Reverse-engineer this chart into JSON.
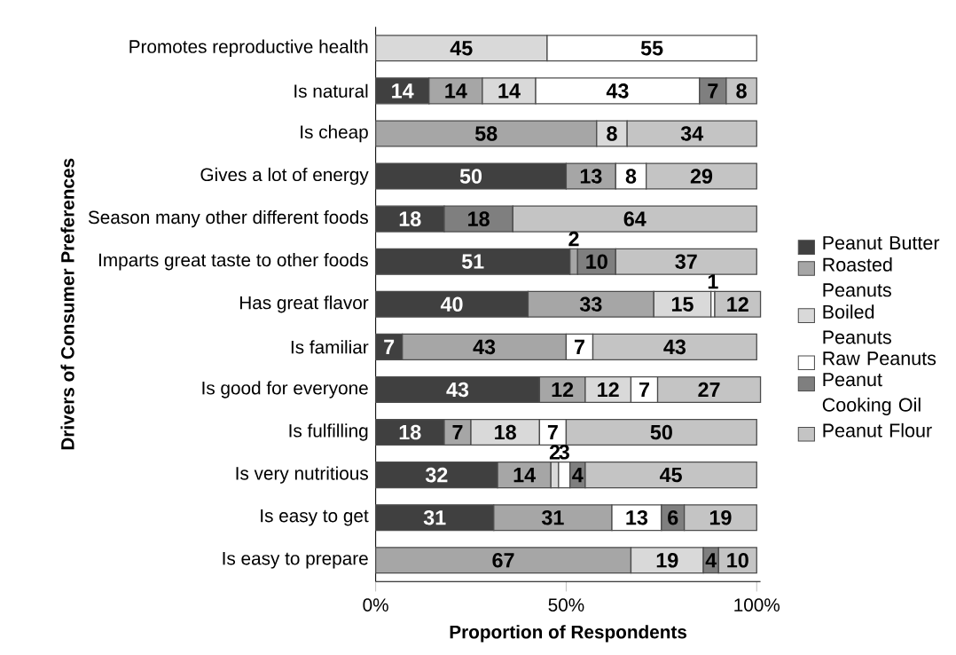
{
  "chart_data": {
    "type": "bar",
    "orientation": "horizontal",
    "stacked": true,
    "xlabel": "Proportion of Respondents",
    "ylabel": "Drivers of Consumer Preferences",
    "categories": [
      "Promotes reproductive health",
      "Is natural",
      "Is cheap",
      "Gives a lot of energy",
      "Season many other different foods",
      "Imparts great taste to other foods",
      "Has great flavor",
      "Is familiar",
      "Is good for everyone",
      "Is fulfilling",
      "Is very nutritious",
      "Is easy to get",
      "Is easy to prepare"
    ],
    "series": [
      {
        "name": "Peanut Butter",
        "color": "#404040",
        "values": [
          null,
          14,
          null,
          50,
          18,
          51,
          40,
          7,
          43,
          18,
          32,
          31,
          null
        ]
      },
      {
        "name": "Roasted Peanuts",
        "color": "#a6a6a6",
        "values": [
          null,
          14,
          58,
          13,
          null,
          2,
          33,
          43,
          12,
          7,
          14,
          31,
          67
        ]
      },
      {
        "name": "Boiled Peanuts",
        "color": "#d9d9d9",
        "values": [
          45,
          14,
          8,
          null,
          null,
          null,
          15,
          null,
          12,
          18,
          2,
          null,
          19
        ]
      },
      {
        "name": "Raw Peanuts",
        "color": "#ffffff",
        "values": [
          55,
          43,
          null,
          8,
          null,
          null,
          1,
          7,
          7,
          7,
          3,
          13,
          null
        ]
      },
      {
        "name": "Peanut Cooking Oil",
        "color": "#7f7f7f",
        "values": [
          null,
          7,
          null,
          null,
          18,
          10,
          null,
          null,
          null,
          null,
          4,
          6,
          4
        ]
      },
      {
        "name": "Peanut Flour",
        "color": "#c4c4c4",
        "values": [
          null,
          8,
          34,
          29,
          64,
          37,
          12,
          43,
          27,
          50,
          45,
          19,
          10
        ]
      }
    ],
    "xlim": [
      0,
      101
    ],
    "xticks": [
      {
        "value": 0,
        "label": "0%"
      },
      {
        "value": 50,
        "label": "50%"
      },
      {
        "value": 100,
        "label": "100%"
      }
    ],
    "data_labels": true,
    "legend": "right",
    "grid": false
  }
}
